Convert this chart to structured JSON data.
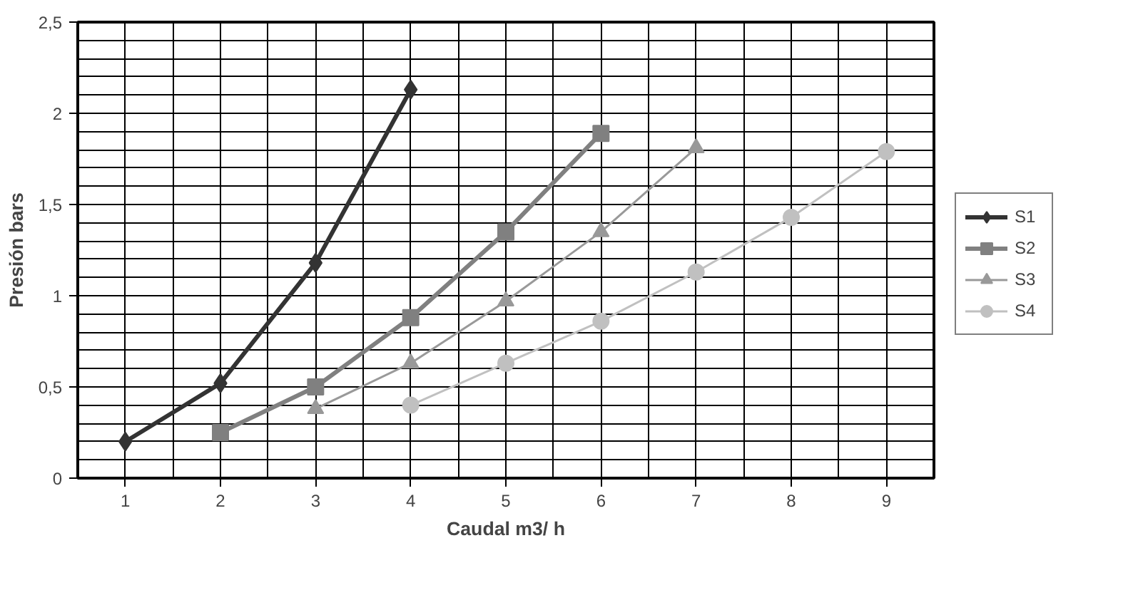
{
  "chart_data": {
    "type": "line",
    "xlabel": "Caudal m3/ h",
    "ylabel": "Presión bars",
    "xlim": [
      0.5,
      9.5
    ],
    "xticks": [
      1,
      2,
      3,
      4,
      5,
      6,
      7,
      8,
      9
    ],
    "ylim": [
      0,
      2.5
    ],
    "yticks": [
      0,
      {
        "value": 0.5,
        "label": "0,5"
      },
      1,
      {
        "value": 1.5,
        "label": "1,5"
      },
      2,
      {
        "value": 2.5,
        "label": "2,5"
      }
    ],
    "grid": true,
    "legend": "right",
    "series": [
      {
        "name": "S1",
        "color": "#333333",
        "marker": "diamond",
        "x": [
          1,
          2,
          3,
          4
        ],
        "values": [
          0.2,
          0.52,
          1.18,
          2.13
        ]
      },
      {
        "name": "S2",
        "color": "#808080",
        "marker": "square",
        "x": [
          2,
          3,
          4,
          5,
          6
        ],
        "values": [
          0.25,
          0.5,
          0.88,
          1.35,
          1.89
        ]
      },
      {
        "name": "S3",
        "color": "#999999",
        "marker": "triangle",
        "x": [
          3,
          4,
          5,
          6,
          7
        ],
        "values": [
          0.38,
          0.63,
          0.97,
          1.35,
          1.81
        ]
      },
      {
        "name": "S4",
        "color": "#c0c0c0",
        "marker": "circle",
        "x": [
          4,
          5,
          6,
          7,
          8,
          9
        ],
        "values": [
          0.4,
          0.63,
          0.86,
          1.13,
          1.43,
          1.79
        ]
      }
    ]
  }
}
